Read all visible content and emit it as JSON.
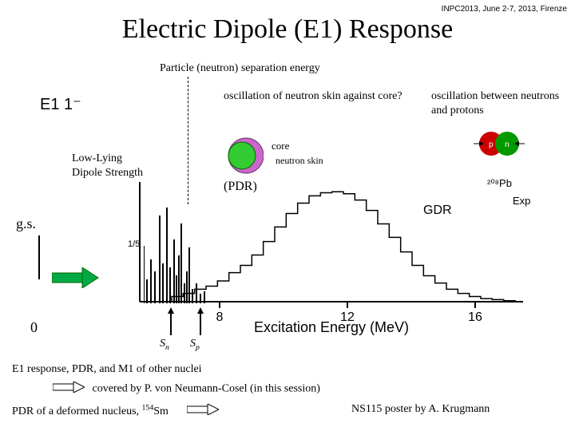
{
  "header_note": "INPC2013, June 2-7, 2013, Firenze",
  "title": "Electric Dipole (E1) Response",
  "separation_label": "Particle (neutron) separation energy",
  "e1_label": "E1 1⁻",
  "osc_skin": "oscillation of neutron skin against core?",
  "osc_np": "oscillation between neutrons and protons",
  "low_lying": "Low-Lying\nDipole Strength",
  "core_label": "core",
  "skin_label": "neutron skin",
  "pdr": "(PDR)",
  "gdr": "GDR",
  "pb_label": "²⁰⁸Pb",
  "exp_label": "Exp",
  "gs": "g.s.",
  "zero": "0",
  "sn": "Sₙ",
  "sp": "Sₚ",
  "one_fifth": "1/5",
  "xlabel": "Excitation Energy (MeV)",
  "xticks": [
    "8",
    "12",
    "16"
  ],
  "footer1": "E1 response, PDR, and M1 of other nuclei",
  "footer2": "covered by P. von Neumann-Cosel (in this session)",
  "footer3": "PDR of a deformed nucleus, ¹⁵⁴Sm",
  "footer4": "NS115 poster by A. Krugmann",
  "colors": {
    "core_inner": "#33cc33",
    "core_outer": "#cc66cc",
    "proton": "#cc0000",
    "neutron": "#009900",
    "arrow": "#00aa44",
    "arrow_border": "#006600"
  },
  "bars": [
    {
      "x": 8,
      "h": 30
    },
    {
      "x": 13,
      "h": 55
    },
    {
      "x": 18,
      "h": 40
    },
    {
      "x": 24,
      "h": 110
    },
    {
      "x": 28,
      "h": 50
    },
    {
      "x": 33,
      "h": 120
    },
    {
      "x": 37,
      "h": 45
    },
    {
      "x": 42,
      "h": 80
    },
    {
      "x": 45,
      "h": 35
    },
    {
      "x": 48,
      "h": 60
    },
    {
      "x": 51,
      "h": 100
    },
    {
      "x": 55,
      "h": 25
    },
    {
      "x": 58,
      "h": 40
    },
    {
      "x": 61,
      "h": 70
    },
    {
      "x": 65,
      "h": 18
    },
    {
      "x": 70,
      "h": 25
    },
    {
      "x": 75,
      "h": 12
    },
    {
      "x": 80,
      "h": 15
    }
  ],
  "histogram": [
    5,
    8,
    12,
    15,
    20,
    28,
    35,
    45,
    58,
    72,
    85,
    95,
    102,
    105,
    106,
    104,
    98,
    88,
    75,
    62,
    48,
    35,
    25,
    18,
    12,
    8,
    5,
    3,
    2,
    1
  ]
}
